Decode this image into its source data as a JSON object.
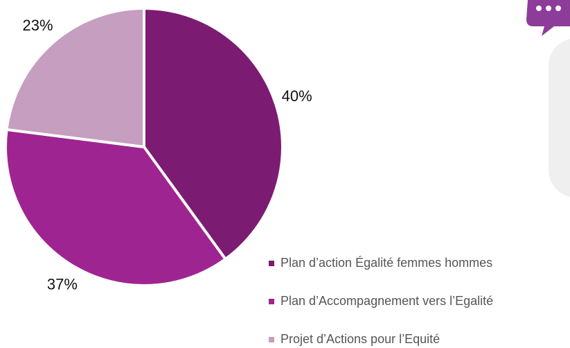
{
  "chart_data": {
    "type": "pie",
    "categories": [
      "Plan d’action Égalité femmes hommes",
      "Plan d’Accompagnement vers l’Egalité",
      "Projet d’Actions pour l’Equité"
    ],
    "values": [
      40,
      37,
      23
    ],
    "value_labels": [
      "40%",
      "37%",
      "23%"
    ],
    "colors": [
      "#7b1c72",
      "#9e2591",
      "#c59ec0"
    ]
  }
}
